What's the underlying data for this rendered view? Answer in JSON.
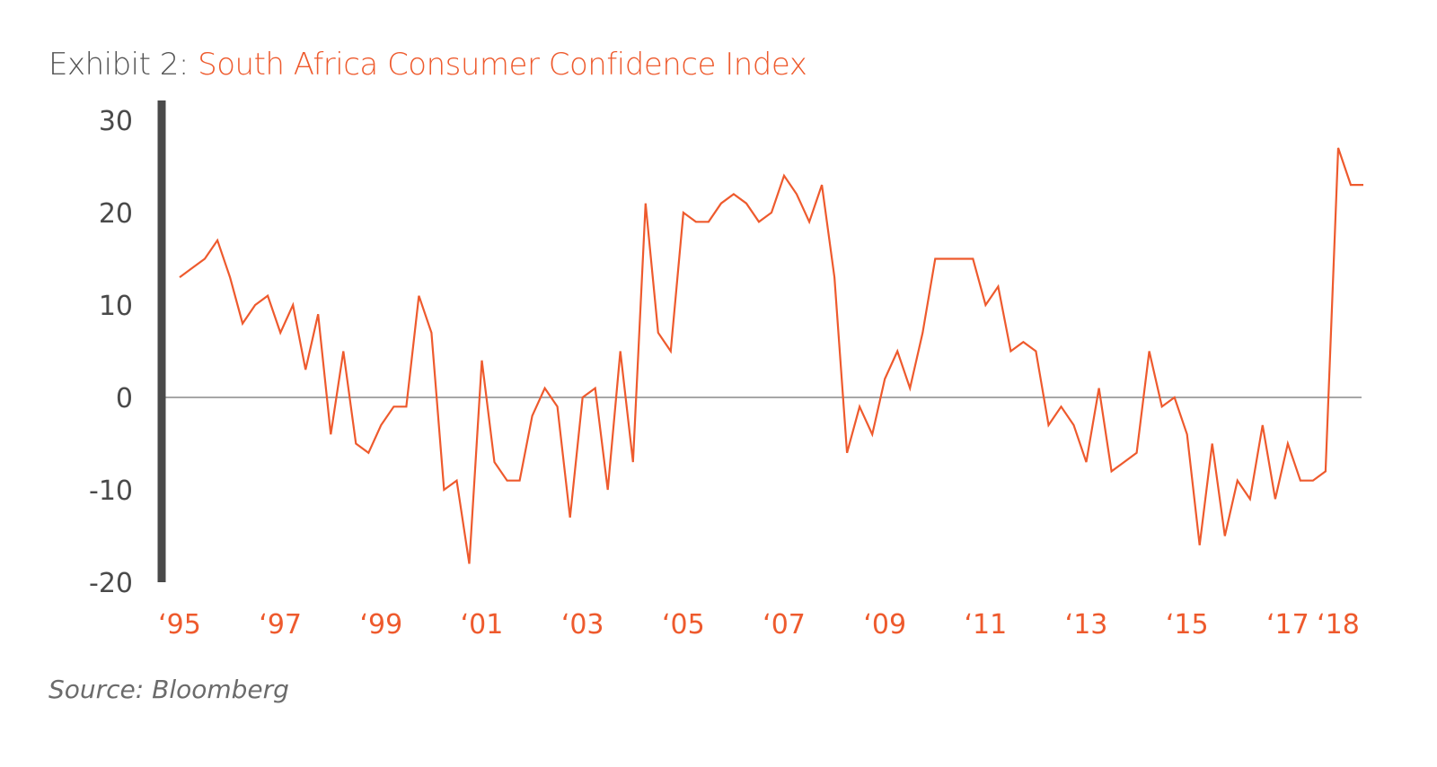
{
  "title_prefix": "Exhibit 2:",
  "title_main": "South Africa Consumer Confidence Index",
  "source": "Source: Bloomberg",
  "colors": {
    "line": "#ee5a2d",
    "axis": "#4a4a4a",
    "text": "#555555",
    "zero_line": "#8a8a8a"
  },
  "chart_data": {
    "type": "line",
    "title": "South Africa Consumer Confidence Index",
    "xlabel": "",
    "ylabel": "",
    "ylim": [
      -20,
      30
    ],
    "yticks": [
      "30",
      "20",
      "10",
      "0",
      "-10",
      "-20"
    ],
    "ytick_values": [
      30,
      20,
      10,
      0,
      -10,
      -20
    ],
    "xticks": [
      "‘95",
      "‘97",
      "‘99",
      "‘01",
      "‘03",
      "‘05",
      "‘07",
      "‘09",
      "‘11",
      "‘13",
      "‘15",
      "‘17",
      "‘18"
    ],
    "xtick_values": [
      1995.0,
      1997.0,
      1999.0,
      2001.0,
      2003.0,
      2005.0,
      2007.0,
      2009.0,
      2011.0,
      2013.0,
      2015.0,
      2017.0,
      2018.0
    ],
    "grid": false,
    "series": [
      {
        "x": [
          1995.0,
          1995.25,
          1995.5,
          1995.75,
          1996.0,
          1996.25,
          1996.5,
          1996.75,
          1997.0,
          1997.25,
          1997.5,
          1997.75,
          1998.0,
          1998.25,
          1998.5,
          1998.75,
          1999.0,
          1999.25,
          1999.5,
          1999.75,
          2000.0,
          2000.25,
          2000.5,
          2000.75,
          2001.0,
          2001.25,
          2001.5,
          2001.75,
          2002.0,
          2002.25,
          2002.5,
          2002.75,
          2003.0,
          2003.25,
          2003.5,
          2003.75,
          2004.0,
          2004.25,
          2004.5,
          2004.75,
          2005.0,
          2005.25,
          2005.5,
          2005.75,
          2006.0,
          2006.25,
          2006.5,
          2006.75,
          2007.0,
          2007.25,
          2007.5,
          2007.75,
          2008.0,
          2008.25,
          2008.5,
          2008.75,
          2009.0,
          2009.25,
          2009.5,
          2009.75,
          2010.0,
          2010.25,
          2010.5,
          2010.75,
          2011.0,
          2011.25,
          2011.5,
          2011.75,
          2012.0,
          2012.25,
          2012.5,
          2012.75,
          2013.0,
          2013.25,
          2013.5,
          2013.75,
          2014.0,
          2014.25,
          2014.5,
          2014.75,
          2015.0,
          2015.25,
          2015.5,
          2015.75,
          2016.0,
          2016.25,
          2016.5,
          2016.75,
          2017.0,
          2017.25,
          2017.5,
          2017.75,
          2018.0,
          2018.25,
          2018.5
        ],
        "values": [
          13,
          14,
          15,
          17,
          13,
          8,
          10,
          11,
          7,
          10,
          3,
          9,
          -4,
          5,
          -5,
          -6,
          -3,
          -1,
          -1,
          11,
          7,
          -10,
          -9,
          -18,
          4,
          -7,
          -9,
          -9,
          -2,
          1,
          -1,
          -13,
          0,
          1,
          -10,
          5,
          -7,
          21,
          7,
          5,
          20,
          19,
          19,
          21,
          22,
          21,
          19,
          20,
          24,
          22,
          19,
          23,
          13,
          -6,
          -1,
          -4,
          2,
          5,
          1,
          7,
          15,
          15,
          15,
          15,
          10,
          12,
          5,
          6,
          5,
          -3,
          -1,
          -3,
          -7,
          1,
          -8,
          -7,
          -6,
          5,
          -1,
          0,
          -4,
          -16,
          -5,
          -15,
          -9,
          -11,
          -3,
          -11,
          -5,
          -9,
          -9,
          -8,
          27,
          23,
          23
        ]
      }
    ]
  }
}
